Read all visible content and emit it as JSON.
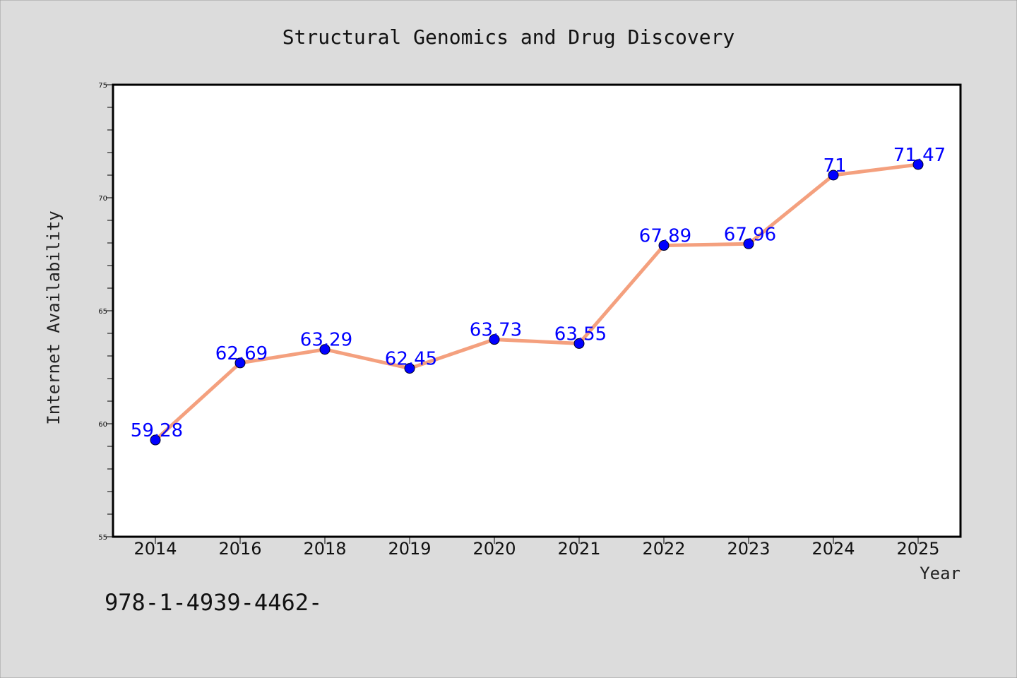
{
  "chart_data": {
    "type": "line",
    "title": "Structural Genomics and Drug Discovery",
    "xlabel": "Year",
    "ylabel": "Internet Availability",
    "categories": [
      "2014",
      "2016",
      "2018",
      "2019",
      "2020",
      "2021",
      "2022",
      "2023",
      "2024",
      "2025"
    ],
    "series": [
      {
        "values": [
          59.28,
          62.69,
          63.29,
          62.45,
          63.73,
          63.55,
          67.89,
          67.96,
          71,
          71.47
        ],
        "labels": [
          "59.28",
          "62.69",
          "63.29",
          "62.45",
          "63.73",
          "63.55",
          "67.89",
          "67.96",
          "71",
          "71.47"
        ]
      }
    ],
    "ylim": [
      55,
      75
    ],
    "yticks": [
      "55",
      "60",
      "65",
      "70",
      "75"
    ],
    "grid": false,
    "line_color": "#f4a07e",
    "marker_color": "#0000ff",
    "label_color": "#0000ff",
    "background": "#dcdcdc",
    "plot_background": "#ffffff"
  },
  "footnote": "978-1-4939-4462-"
}
